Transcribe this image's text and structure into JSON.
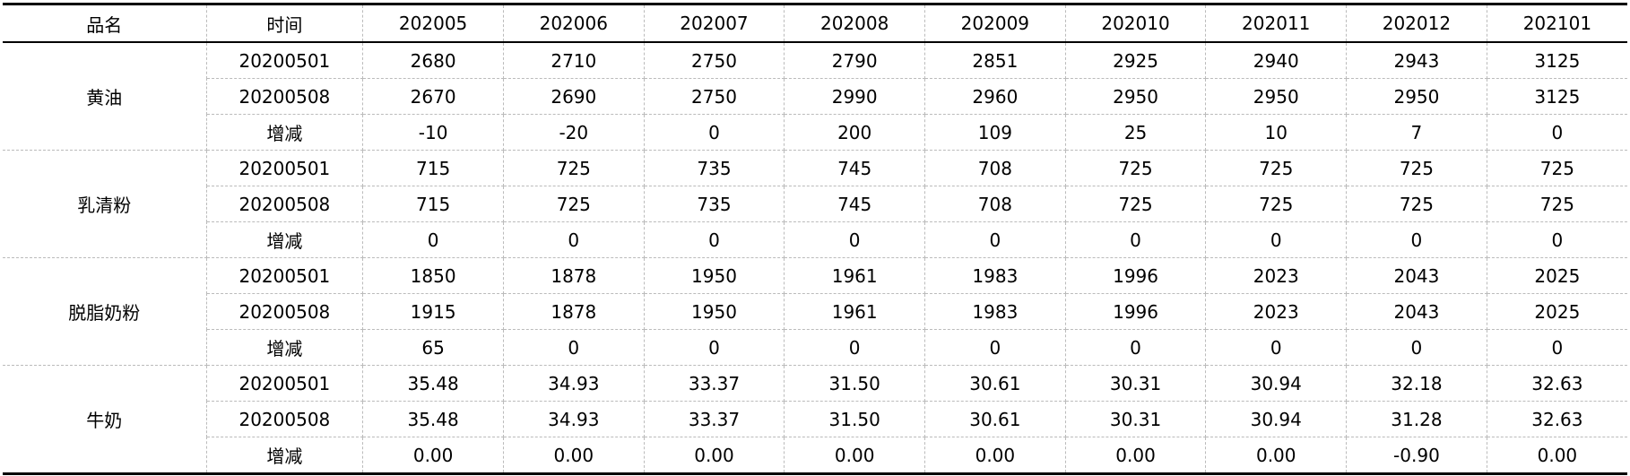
{
  "table": {
    "header": [
      "品名",
      "时间",
      "202005",
      "202006",
      "202007",
      "202008",
      "202009",
      "202010",
      "202011",
      "202012",
      "202101"
    ],
    "groups": [
      {
        "name": "黄油",
        "rows": [
          [
            "20200501",
            "2680",
            "2710",
            "2750",
            "2790",
            "2851",
            "2925",
            "2940",
            "2943",
            "3125"
          ],
          [
            "20200508",
            "2670",
            "2690",
            "2750",
            "2990",
            "2960",
            "2950",
            "2950",
            "2950",
            "3125"
          ],
          [
            "增减",
            "-10",
            "-20",
            "0",
            "200",
            "109",
            "25",
            "10",
            "7",
            "0"
          ]
        ]
      },
      {
        "name": "乳清粉",
        "rows": [
          [
            "20200501",
            "715",
            "725",
            "735",
            "745",
            "708",
            "725",
            "725",
            "725",
            "725"
          ],
          [
            "20200508",
            "715",
            "725",
            "735",
            "745",
            "708",
            "725",
            "725",
            "725",
            "725"
          ],
          [
            "增减",
            "0",
            "0",
            "0",
            "0",
            "0",
            "0",
            "0",
            "0",
            "0"
          ]
        ]
      },
      {
        "name": "脱脂奶粉",
        "rows": [
          [
            "20200501",
            "1850",
            "1878",
            "1950",
            "1961",
            "1983",
            "1996",
            "2023",
            "2043",
            "2025"
          ],
          [
            "20200508",
            "1915",
            "1878",
            "1950",
            "1961",
            "1983",
            "1996",
            "2023",
            "2043",
            "2025"
          ],
          [
            "增减",
            "65",
            "0",
            "0",
            "0",
            "0",
            "0",
            "0",
            "0",
            "0"
          ]
        ]
      },
      {
        "name": "牛奶",
        "rows": [
          [
            "20200501",
            "35.48",
            "34.93",
            "33.37",
            "31.50",
            "30.61",
            "30.31",
            "30.94",
            "32.18",
            "32.63"
          ],
          [
            "20200508",
            "35.48",
            "34.93",
            "33.37",
            "31.50",
            "30.61",
            "30.31",
            "30.94",
            "31.28",
            "32.63"
          ],
          [
            "增减",
            "0.00",
            "0.00",
            "0.00",
            "0.00",
            "0.00",
            "0.00",
            "0.00",
            "-0.90",
            "0.00"
          ]
        ]
      }
    ]
  }
}
